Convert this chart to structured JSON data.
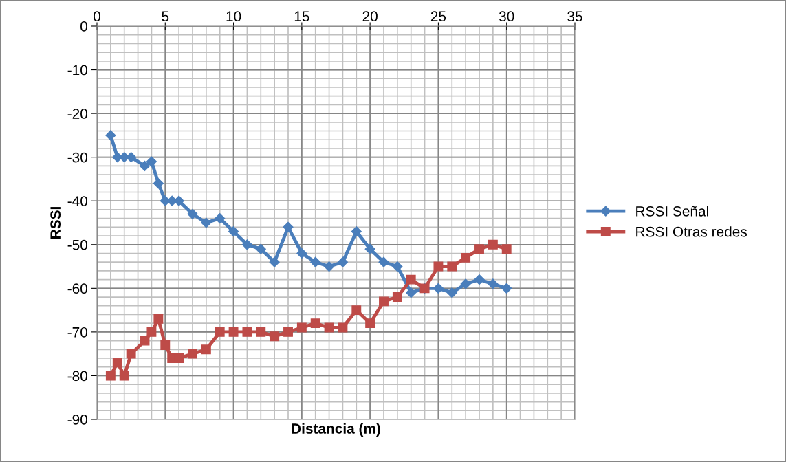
{
  "chart_data": {
    "type": "line",
    "xlabel": "Distancia (m)",
    "ylabel": "RSSI",
    "xlim": [
      0,
      35
    ],
    "xticks": [
      0,
      5,
      10,
      15,
      20,
      25,
      30,
      35
    ],
    "ylim": [
      -90,
      0
    ],
    "yticks": [
      -90,
      -80,
      -70,
      -60,
      -50,
      -40,
      -30,
      -20,
      -10,
      0
    ],
    "x": [
      1,
      1.5,
      2,
      2.5,
      3.5,
      4,
      4.5,
      5,
      5.5,
      6,
      7,
      8,
      9,
      10,
      11,
      12,
      13,
      14,
      15,
      16,
      17,
      18,
      19,
      20,
      21,
      22,
      23,
      24,
      25,
      26,
      27,
      28,
      29,
      30
    ],
    "series": [
      {
        "name": "RSSI Señal",
        "color": "#4a7ebb",
        "marker": "diamond",
        "values": [
          -25,
          -30,
          -30,
          -30,
          -32,
          -31,
          -36,
          -40,
          -40,
          -40,
          -43,
          -45,
          -44,
          -47,
          -50,
          -51,
          -54,
          -46,
          -52,
          -54,
          -55,
          -54,
          -47,
          -51,
          -54,
          -55,
          -61,
          -60,
          -60,
          -61,
          -59,
          -58,
          -59,
          -60
        ]
      },
      {
        "name": "RSSI Otras redes",
        "color": "#be4b48",
        "marker": "square",
        "values": [
          -80,
          -77,
          -80,
          -75,
          -72,
          -70,
          -67,
          -73,
          -76,
          -76,
          -75,
          -74,
          -70,
          -70,
          -70,
          -70,
          -71,
          -70,
          -69,
          -68,
          -69,
          -69,
          -65,
          -68,
          -63,
          -62,
          -58,
          -60,
          -55,
          -55,
          -53,
          -51,
          -50,
          -51
        ]
      }
    ],
    "grid": true,
    "legend": "right",
    "line_style": "solid"
  }
}
